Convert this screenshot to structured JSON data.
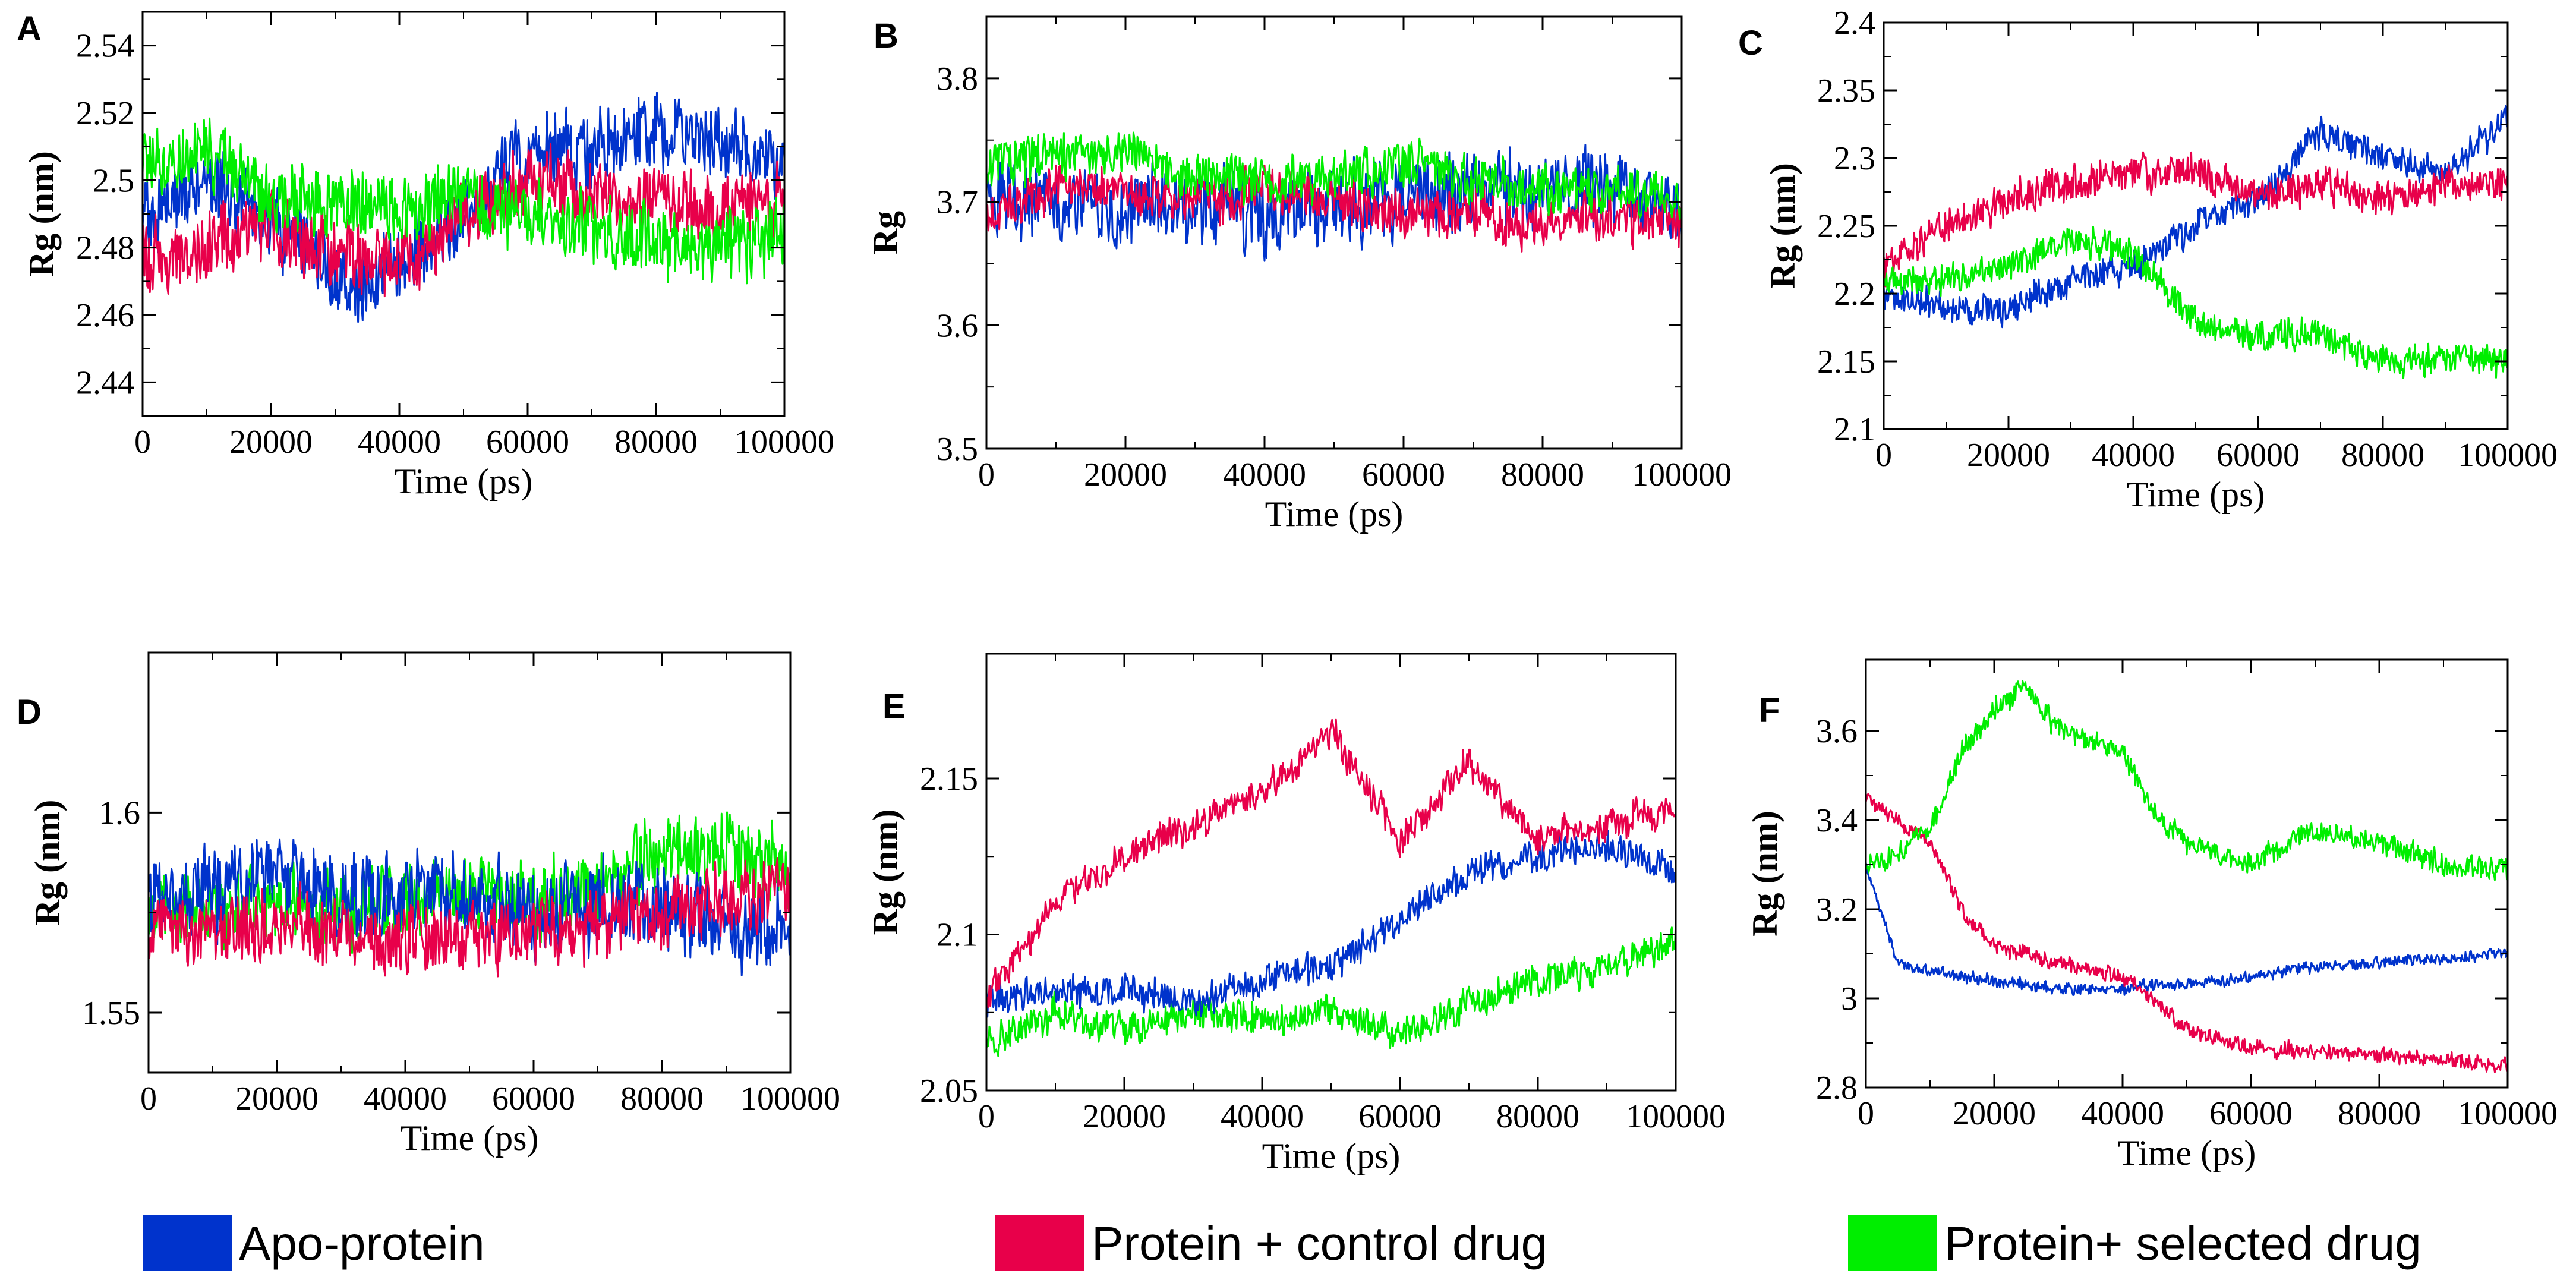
{
  "figure": {
    "series_names": [
      "Apo-protein",
      "Protein + control drug",
      "Protein+ selected drug"
    ],
    "series_colors": [
      "#0033cc",
      "#e8004a",
      "#00ee00"
    ]
  },
  "legend": {
    "items": [
      {
        "label": "Apo-protein",
        "color": "#0033cc"
      },
      {
        "label": "Protein + control drug",
        "color": "#e8004a"
      },
      {
        "label": "Protein+ selected drug",
        "color": "#00ee00"
      }
    ]
  },
  "chart_data": [
    {
      "panel": "A",
      "type": "line",
      "title": "",
      "xlabel": "Time (ps)",
      "ylabel": "Rg (nm)",
      "xlim": [
        0,
        100000
      ],
      "ylim": [
        2.43,
        2.55
      ],
      "xticks": [
        0,
        20000,
        40000,
        60000,
        80000,
        100000
      ],
      "xtick_labels": [
        "0",
        "20000",
        "40000",
        "60000",
        "80000",
        "100000"
      ],
      "yticks": [
        2.44,
        2.46,
        2.48,
        2.5,
        2.52,
        2.54
      ],
      "ytick_labels": [
        "2.44",
        "2.46",
        "2.48",
        "2.5",
        "2.52",
        "2.54"
      ],
      "grid": false,
      "x": [
        0,
        10000,
        20000,
        30000,
        40000,
        50000,
        60000,
        70000,
        80000,
        90000,
        100000
      ],
      "series": [
        {
          "name": "Apo-protein",
          "color": "#0033cc",
          "noise": 0.013,
          "values": [
            2.49,
            2.5,
            2.49,
            2.47,
            2.475,
            2.49,
            2.51,
            2.51,
            2.515,
            2.51,
            2.505
          ]
        },
        {
          "name": "Protein + control drug",
          "color": "#e8004a",
          "noise": 0.012,
          "values": [
            2.475,
            2.48,
            2.485,
            2.48,
            2.475,
            2.49,
            2.5,
            2.495,
            2.495,
            2.49,
            2.495
          ]
        },
        {
          "name": "Protein+ selected drug",
          "color": "#00ee00",
          "noise": 0.012,
          "values": [
            2.505,
            2.51,
            2.495,
            2.495,
            2.49,
            2.495,
            2.49,
            2.485,
            2.48,
            2.48,
            2.485
          ]
        }
      ]
    },
    {
      "panel": "B",
      "type": "line",
      "title": "",
      "xlabel": "Time (ps)",
      "ylabel": "Rg",
      "xlim": [
        0,
        100000
      ],
      "ylim": [
        3.5,
        3.85
      ],
      "xticks": [
        0,
        20000,
        40000,
        60000,
        80000,
        100000
      ],
      "xtick_labels": [
        "0",
        "20000",
        "40000",
        "60000",
        "80000",
        "100000"
      ],
      "yticks": [
        3.5,
        3.6,
        3.7,
        3.8
      ],
      "ytick_labels": [
        "3.5",
        "3.6",
        "3.7",
        "3.8"
      ],
      "grid": false,
      "x": [
        0,
        10000,
        20000,
        30000,
        40000,
        50000,
        60000,
        70000,
        80000,
        90000,
        100000
      ],
      "series": [
        {
          "name": "Apo-protein",
          "color": "#0033cc",
          "noise": 0.035,
          "values": [
            3.7,
            3.7,
            3.69,
            3.7,
            3.69,
            3.7,
            3.7,
            3.71,
            3.71,
            3.71,
            3.69
          ]
        },
        {
          "name": "Protein + control drug",
          "color": "#e8004a",
          "noise": 0.022,
          "values": [
            3.69,
            3.71,
            3.71,
            3.7,
            3.71,
            3.7,
            3.69,
            3.69,
            3.68,
            3.69,
            3.68
          ]
        },
        {
          "name": "Protein+ selected drug",
          "color": "#00ee00",
          "noise": 0.022,
          "values": [
            3.73,
            3.74,
            3.74,
            3.72,
            3.72,
            3.72,
            3.73,
            3.72,
            3.71,
            3.71,
            3.7
          ]
        }
      ]
    },
    {
      "panel": "C",
      "type": "line",
      "title": "",
      "xlabel": "Time (ps)",
      "ylabel": "Rg (nm)",
      "xlim": [
        0,
        100000
      ],
      "ylim": [
        2.1,
        2.4
      ],
      "xticks": [
        0,
        20000,
        40000,
        60000,
        80000,
        100000
      ],
      "xtick_labels": [
        "0",
        "20000",
        "40000",
        "60000",
        "80000",
        "100000"
      ],
      "yticks": [
        2.1,
        2.15,
        2.2,
        2.25,
        2.3,
        2.35,
        2.4
      ],
      "ytick_labels": [
        "2.1",
        "2.15",
        "2.2",
        "2.25",
        "2.3",
        "2.35",
        "2.4"
      ],
      "grid": false,
      "x": [
        0,
        10000,
        20000,
        30000,
        40000,
        50000,
        60000,
        70000,
        80000,
        90000,
        100000
      ],
      "series": [
        {
          "name": "Apo-protein",
          "color": "#0033cc",
          "noise": 0.013,
          "values": [
            2.2,
            2.19,
            2.19,
            2.21,
            2.22,
            2.25,
            2.27,
            2.32,
            2.3,
            2.29,
            2.33
          ]
        },
        {
          "name": "Protein + control drug",
          "color": "#e8004a",
          "noise": 0.015,
          "values": [
            2.22,
            2.25,
            2.27,
            2.28,
            2.29,
            2.29,
            2.27,
            2.28,
            2.27,
            2.28,
            2.28
          ]
        },
        {
          "name": "Protein+ selected drug",
          "color": "#00ee00",
          "noise": 0.013,
          "values": [
            2.21,
            2.21,
            2.22,
            2.24,
            2.23,
            2.18,
            2.17,
            2.17,
            2.15,
            2.15,
            2.15
          ]
        }
      ]
    },
    {
      "panel": "D",
      "type": "line",
      "title": "",
      "xlabel": "Time (ps)",
      "ylabel": "Rg (nm)",
      "xlim": [
        0,
        100000
      ],
      "ylim": [
        1.535,
        1.64
      ],
      "xticks": [
        0,
        20000,
        40000,
        60000,
        80000,
        100000
      ],
      "xtick_labels": [
        "0",
        "20000",
        "40000",
        "60000",
        "80000",
        "100000"
      ],
      "yticks": [
        1.55,
        1.6
      ],
      "ytick_labels": [
        "1.55",
        "1.6"
      ],
      "grid": false,
      "x": [
        0,
        10000,
        20000,
        30000,
        40000,
        50000,
        60000,
        70000,
        80000,
        90000,
        100000
      ],
      "series": [
        {
          "name": "Protein+ selected drug",
          "color": "#00ee00",
          "noise": 0.011,
          "values": [
            1.575,
            1.575,
            1.578,
            1.575,
            1.578,
            1.58,
            1.578,
            1.58,
            1.59,
            1.59,
            1.585
          ]
        },
        {
          "name": "Apo-protein",
          "color": "#0033cc",
          "noise": 0.012,
          "values": [
            1.578,
            1.58,
            1.585,
            1.578,
            1.58,
            1.578,
            1.575,
            1.578,
            1.575,
            1.572,
            1.57
          ]
        },
        {
          "name": "Protein + control drug",
          "color": "#e8004a",
          "noise": 0.01,
          "values": [
            1.57,
            1.57,
            1.572,
            1.57,
            1.568,
            1.57,
            1.57,
            1.572,
            1.575,
            1.578,
            1.58
          ]
        }
      ]
    },
    {
      "panel": "E",
      "type": "line",
      "title": "",
      "xlabel": "Time (ps)",
      "ylabel": "Rg (nm)",
      "xlim": [
        0,
        100000
      ],
      "ylim": [
        2.05,
        2.19
      ],
      "xticks": [
        0,
        20000,
        40000,
        60000,
        80000,
        100000
      ],
      "xtick_labels": [
        "0",
        "20000",
        "40000",
        "60000",
        "80000",
        "100000"
      ],
      "yticks": [
        2.05,
        2.1,
        2.15
      ],
      "ytick_labels": [
        "2.05",
        "2.1",
        "2.15"
      ],
      "grid": false,
      "x": [
        0,
        10000,
        20000,
        30000,
        40000,
        50000,
        60000,
        70000,
        80000,
        90000,
        100000
      ],
      "series": [
        {
          "name": "Protein+ selected drug",
          "color": "#00ee00",
          "noise": 0.006,
          "values": [
            2.065,
            2.075,
            2.07,
            2.075,
            2.072,
            2.075,
            2.068,
            2.078,
            2.085,
            2.09,
            2.098
          ]
        },
        {
          "name": "Apo-protein",
          "color": "#0033cc",
          "noise": 0.006,
          "values": [
            2.08,
            2.082,
            2.082,
            2.078,
            2.085,
            2.09,
            2.105,
            2.12,
            2.125,
            2.128,
            2.12
          ]
        },
        {
          "name": "Protein + control drug",
          "color": "#e8004a",
          "noise": 0.006,
          "values": [
            2.08,
            2.11,
            2.125,
            2.135,
            2.145,
            2.165,
            2.13,
            2.155,
            2.13,
            2.135,
            2.14
          ]
        }
      ]
    },
    {
      "panel": "F",
      "type": "line",
      "title": "",
      "xlabel": "Time (ps)",
      "ylabel": "Rg (nm)",
      "xlim": [
        0,
        100000
      ],
      "ylim": [
        2.8,
        3.76
      ],
      "xticks": [
        0,
        20000,
        40000,
        60000,
        80000,
        100000
      ],
      "xtick_labels": [
        "0",
        "20000",
        "40000",
        "60000",
        "80000",
        "100000"
      ],
      "yticks": [
        2.8,
        3.0,
        3.2,
        3.4,
        3.6
      ],
      "ytick_labels": [
        "2.8",
        "3",
        "3.2",
        "3.4",
        "3.6"
      ],
      "grid": false,
      "x": [
        0,
        5000,
        10000,
        15000,
        20000,
        25000,
        30000,
        40000,
        45000,
        50000,
        60000,
        70000,
        80000,
        90000,
        100000
      ],
      "series": [
        {
          "name": "Apo-protein",
          "color": "#0033cc",
          "noise": 0.015,
          "values": [
            3.3,
            3.08,
            3.06,
            3.05,
            3.04,
            3.03,
            3.02,
            3.02,
            3.03,
            3.03,
            3.05,
            3.07,
            3.08,
            3.09,
            3.1
          ]
        },
        {
          "name": "Protein + control drug",
          "color": "#e8004a",
          "noise": 0.02,
          "values": [
            3.45,
            3.4,
            3.35,
            3.2,
            3.12,
            3.1,
            3.08,
            3.05,
            3.0,
            2.93,
            2.89,
            2.88,
            2.87,
            2.86,
            2.85
          ]
        },
        {
          "name": "Protein+ selected drug",
          "color": "#00ee00",
          "noise": 0.03,
          "values": [
            3.3,
            3.32,
            3.38,
            3.55,
            3.65,
            3.7,
            3.6,
            3.55,
            3.42,
            3.35,
            3.3,
            3.38,
            3.35,
            3.3,
            3.29
          ]
        }
      ]
    }
  ]
}
